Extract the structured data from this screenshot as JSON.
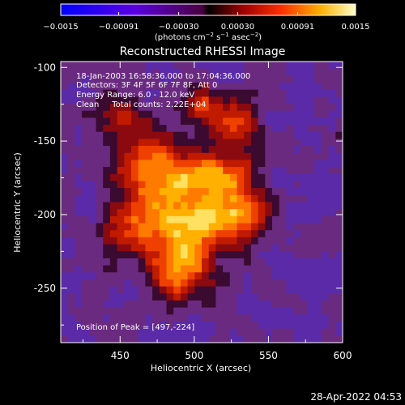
{
  "chart_data": {
    "type": "heatmap",
    "title": "Reconstructed RHESSI Image",
    "xlabel": "Heliocentric X (arcsec)",
    "ylabel": "Heliocentric Y (arcsec)",
    "xlim": [
      410,
      600
    ],
    "ylim": [
      -287,
      -96
    ],
    "x_ticks": [
      "450",
      "500",
      "550",
      "600"
    ],
    "x_tick_values": [
      450,
      500,
      550,
      600
    ],
    "y_ticks": [
      "-100",
      "-150",
      "-200",
      "-250"
    ],
    "y_tick_values": [
      -100,
      -150,
      -200,
      -250
    ],
    "colorbar": {
      "range": [
        -0.0015,
        0.0015
      ],
      "tick_labels": [
        "−0.0015",
        "−0.00091",
        "−0.00030",
        "0.00030",
        "0.00091",
        "0.0015"
      ],
      "tick_values": [
        -0.0015,
        -0.00091,
        -0.0003,
        0.0003,
        0.00091,
        0.0015
      ],
      "label_main": "(photons cm",
      "label_sup1": "−2",
      "label_mid1": " s",
      "label_sup2": "−1",
      "label_mid2": " asec",
      "label_sup3": "−2",
      "label_end": ")"
    },
    "annotations": [
      "18-Jan-2003 16:58:36.000 to 17:04:36.000",
      "Detectors: 3F 4F 5F 6F 7F 8F, Att 0",
      "Energy Range: 6.0 - 12.0 keV",
      "Clean     Total counts: 2.22E+04"
    ],
    "peak_label": "Position of Peak = [497,-224]",
    "peak": [
      497,
      -224
    ],
    "grid": false
  },
  "footer": {
    "timestamp": "28-Apr-2022 04:53"
  }
}
